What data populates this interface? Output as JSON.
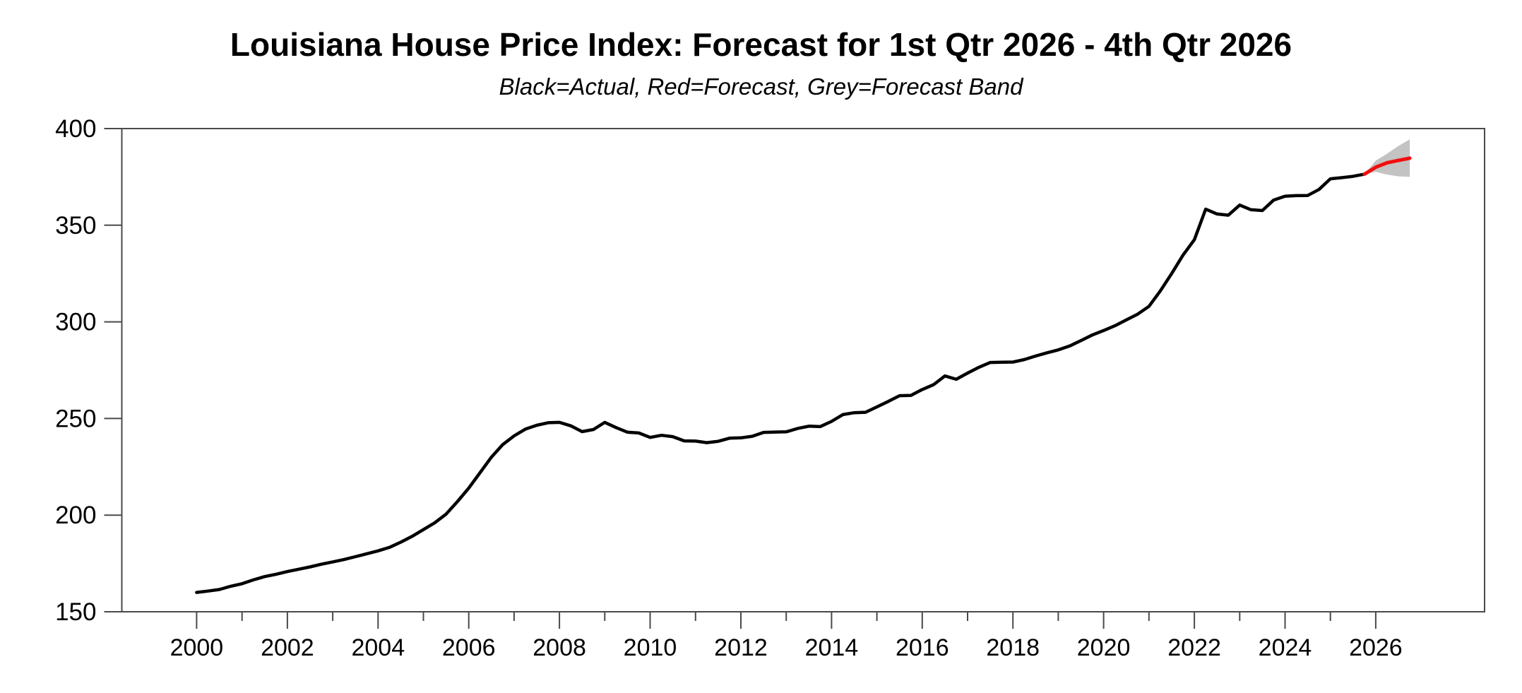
{
  "page": {
    "background": "#ffffff"
  },
  "chart_data": {
    "type": "line",
    "title": "Louisiana House Price Index: Forecast for 1st Qtr 2026 - 4th Qtr 2026",
    "subtitle": "Black=Actual, Red=Forecast, Grey=Forecast Band",
    "grid": false,
    "legend_position": "none (legend encoded in subtitle)",
    "colors": {
      "actual": "#000000",
      "forecast": "#f20d0d",
      "band": "#c3c3c3",
      "frame": "#4a4a4a",
      "label": "#000000"
    },
    "x_axis": {
      "range": [
        1998.35,
        2028.4
      ],
      "major_ticks": [
        2000,
        2002,
        2004,
        2006,
        2008,
        2010,
        2012,
        2014,
        2016,
        2018,
        2020,
        2022,
        2024,
        2026
      ],
      "tick_labels": [
        "2000",
        "2002",
        "2004",
        "2006",
        "2008",
        "2010",
        "2012",
        "2014",
        "2016",
        "2018",
        "2020",
        "2022",
        "2024",
        "2026"
      ],
      "minor_ticks": [
        2001,
        2003,
        2005,
        2007,
        2009,
        2011,
        2013,
        2015,
        2017,
        2019,
        2021,
        2023,
        2025
      ]
    },
    "y_axis": {
      "range": [
        150,
        400
      ],
      "ticks": [
        150,
        200,
        250,
        300,
        350,
        400
      ],
      "tick_labels": [
        "150",
        "200",
        "250",
        "300",
        "350",
        "400"
      ]
    },
    "series": [
      {
        "name": "Actual",
        "type": "line",
        "color": "#000000",
        "x_start": 2000.0,
        "x_step": 0.25,
        "values": [
          160.0,
          160.7,
          161.5,
          163.2,
          164.5,
          166.5,
          168.2,
          169.4,
          170.8,
          172.0,
          173.2,
          174.6,
          175.8,
          177.0,
          178.5,
          180.0,
          181.5,
          183.3,
          186.0,
          189.0,
          192.5,
          196.0,
          200.5,
          207.0,
          214.0,
          222.0,
          230.0,
          236.5,
          241.0,
          244.5,
          246.5,
          247.8,
          248.0,
          246.2,
          243.2,
          244.3,
          248.0,
          245.3,
          242.9,
          242.5,
          240.2,
          241.3,
          240.6,
          238.4,
          238.3,
          237.5,
          238.2,
          239.8,
          240.0,
          240.8,
          242.8,
          243.0,
          243.1,
          244.8,
          246.0,
          245.8,
          248.5,
          252.0,
          253.0,
          253.2,
          256.0,
          258.8,
          261.8,
          261.9,
          265.0,
          267.5,
          272.0,
          270.3,
          273.5,
          276.5,
          279.0,
          279.1,
          279.2,
          280.5,
          282.3,
          284.0,
          285.5,
          287.5,
          290.3,
          293.2,
          295.5,
          298.0,
          301.0,
          304.0,
          308.0,
          316.0,
          325.0,
          334.5,
          342.5,
          358.3,
          355.8,
          355.2,
          360.4,
          358.0,
          357.6,
          363.0,
          365.0,
          365.3,
          365.4,
          368.5,
          374.0,
          374.6,
          375.3,
          376.4
        ]
      },
      {
        "name": "Forecast",
        "type": "line",
        "color": "#f20d0d",
        "x_start": 2025.75,
        "x_step": 0.25,
        "values": [
          376.4,
          380.0,
          382.3,
          383.5,
          384.7
        ]
      },
      {
        "name": "Forecast Band",
        "type": "band",
        "color": "#c3c3c3",
        "x_start": 2025.75,
        "x_step": 0.25,
        "upper": [
          376.4,
          383.4,
          387.0,
          391.0,
          394.4
        ],
        "lower": [
          376.4,
          377.6,
          376.2,
          375.3,
          375.0
        ]
      }
    ]
  }
}
